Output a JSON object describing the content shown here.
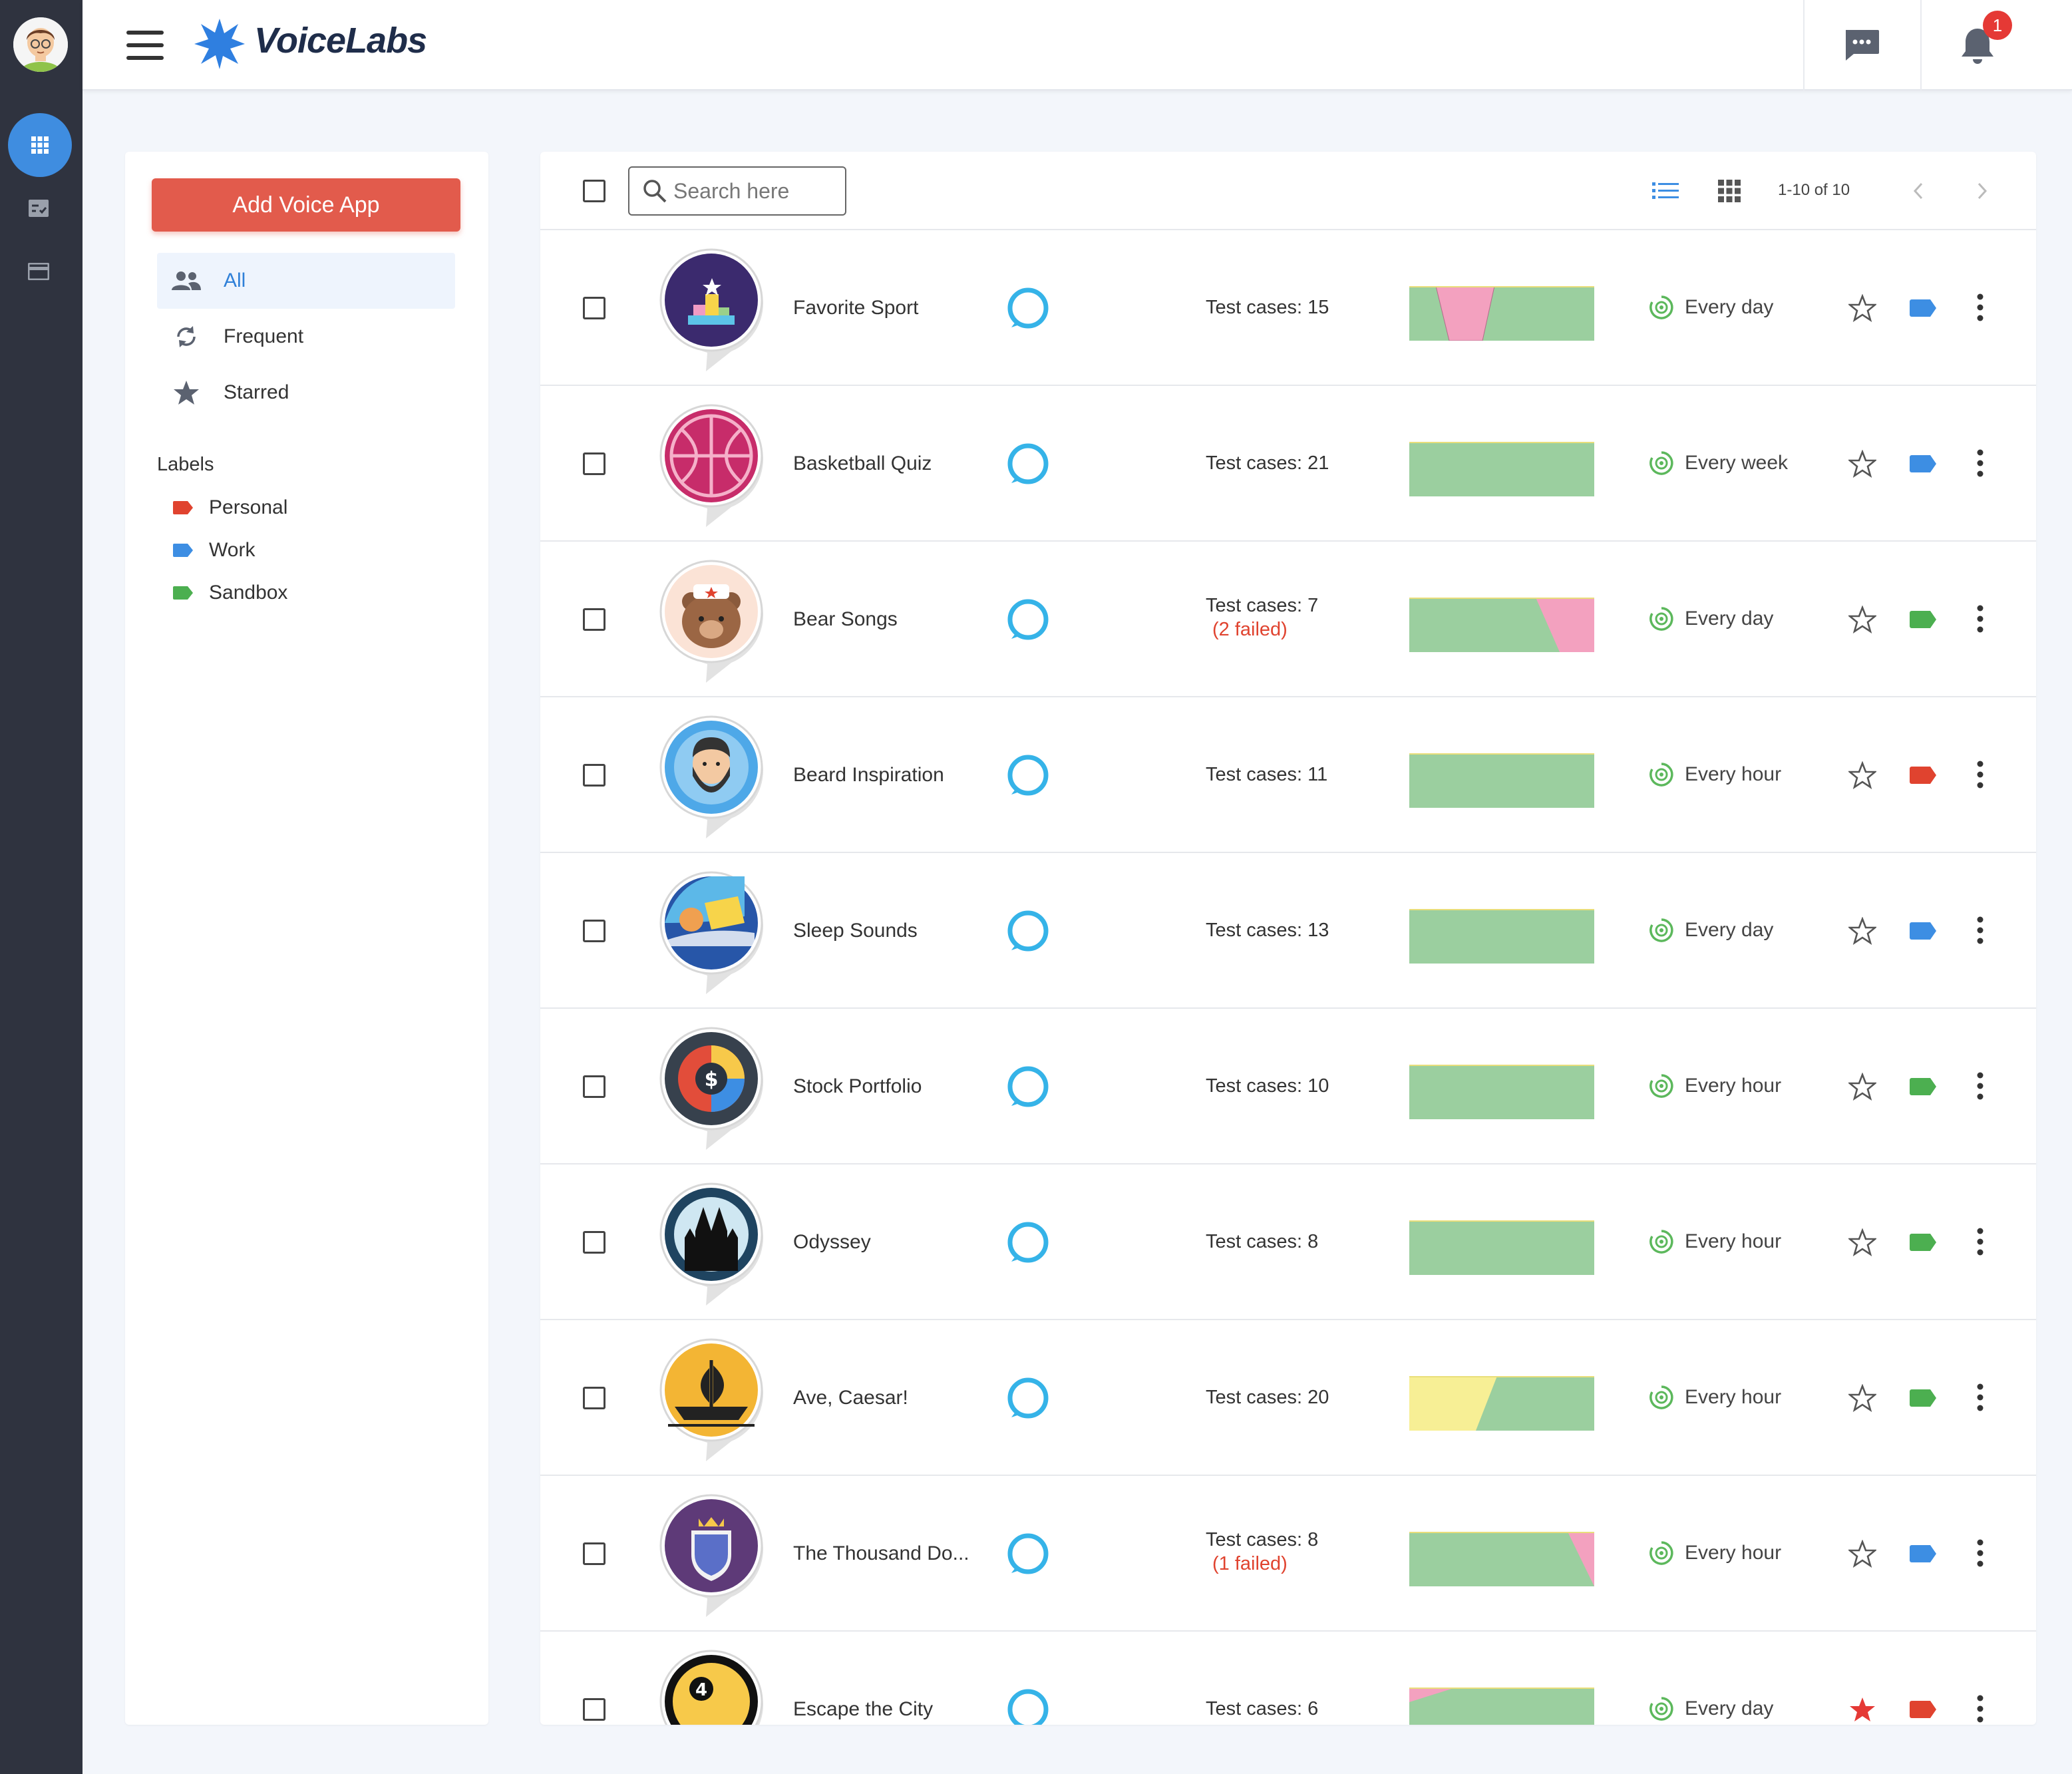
{
  "brand": {
    "name": "VoiceLabs"
  },
  "notifications": {
    "count": "1"
  },
  "sidebar": {
    "add_button": "Add Voice App",
    "nav": [
      {
        "label": "All",
        "icon": "people-icon",
        "active": true
      },
      {
        "label": "Frequent",
        "icon": "refresh-icon",
        "active": false
      },
      {
        "label": "Starred",
        "icon": "star-icon",
        "active": false
      }
    ],
    "labels_title": "Labels",
    "labels": [
      {
        "label": "Personal",
        "color": "#e0432f"
      },
      {
        "label": "Work",
        "color": "#3d8ee3"
      },
      {
        "label": "Sandbox",
        "color": "#4caf50"
      }
    ]
  },
  "toolbar": {
    "search_placeholder": "Search here",
    "page_info": "1-10 of 10"
  },
  "colors": {
    "accent": "#3f8de0",
    "add_button": "#e25b4c",
    "pass": "#9bcf9f",
    "fail": "#f3a1bf",
    "pending": "#f7ef95",
    "tag_red": "#e0432f",
    "tag_blue": "#3d8ee3",
    "tag_green": "#4caf50"
  },
  "apps": [
    {
      "name": "Favorite Sport",
      "tests": "Test cases: 15",
      "failed": "",
      "frequency": "Every day",
      "starred": false,
      "tag": "#3d8ee3",
      "icon": "trophy-icon",
      "spark": "dip"
    },
    {
      "name": "Basketball Quiz",
      "tests": "Test cases: 21",
      "failed": "",
      "frequency": "Every week",
      "starred": false,
      "tag": "#3d8ee3",
      "icon": "basketball-icon",
      "spark": "flat"
    },
    {
      "name": "Bear Songs",
      "tests": "Test cases: 7",
      "failed": "(2 failed)",
      "frequency": "Every day",
      "starred": false,
      "tag": "#4caf50",
      "icon": "bear-icon",
      "spark": "fail-end"
    },
    {
      "name": "Beard Inspiration",
      "tests": "Test cases: 11",
      "failed": "",
      "frequency": "Every hour",
      "starred": false,
      "tag": "#e0432f",
      "icon": "bearded-man-icon",
      "spark": "flat"
    },
    {
      "name": "Sleep Sounds",
      "tests": "Test cases: 13",
      "failed": "",
      "frequency": "Every day",
      "starred": false,
      "tag": "#3d8ee3",
      "icon": "sleep-icon",
      "spark": "flat"
    },
    {
      "name": "Stock Portfolio",
      "tests": "Test cases: 10",
      "failed": "",
      "frequency": "Every hour",
      "starred": false,
      "tag": "#4caf50",
      "icon": "dollar-icon",
      "spark": "flat"
    },
    {
      "name": "Odyssey",
      "tests": "Test cases: 8",
      "failed": "",
      "frequency": "Every hour",
      "starred": false,
      "tag": "#4caf50",
      "icon": "castle-icon",
      "spark": "flat"
    },
    {
      "name": "Ave, Caesar!",
      "tests": "Test cases: 20",
      "failed": "",
      "frequency": "Every hour",
      "starred": false,
      "tag": "#4caf50",
      "icon": "ship-icon",
      "spark": "pending-start"
    },
    {
      "name": "The Thousand Do...",
      "tests": "Test cases: 8",
      "failed": "(1 failed)",
      "frequency": "Every hour",
      "starred": false,
      "tag": "#3d8ee3",
      "icon": "shield-icon",
      "spark": "fail-tail"
    },
    {
      "name": "Escape the City",
      "tests": "Test cases: 6",
      "failed": "",
      "frequency": "Every day",
      "starred": true,
      "tag": "#e0432f",
      "icon": "city-icon",
      "spark": "fail-start"
    }
  ]
}
